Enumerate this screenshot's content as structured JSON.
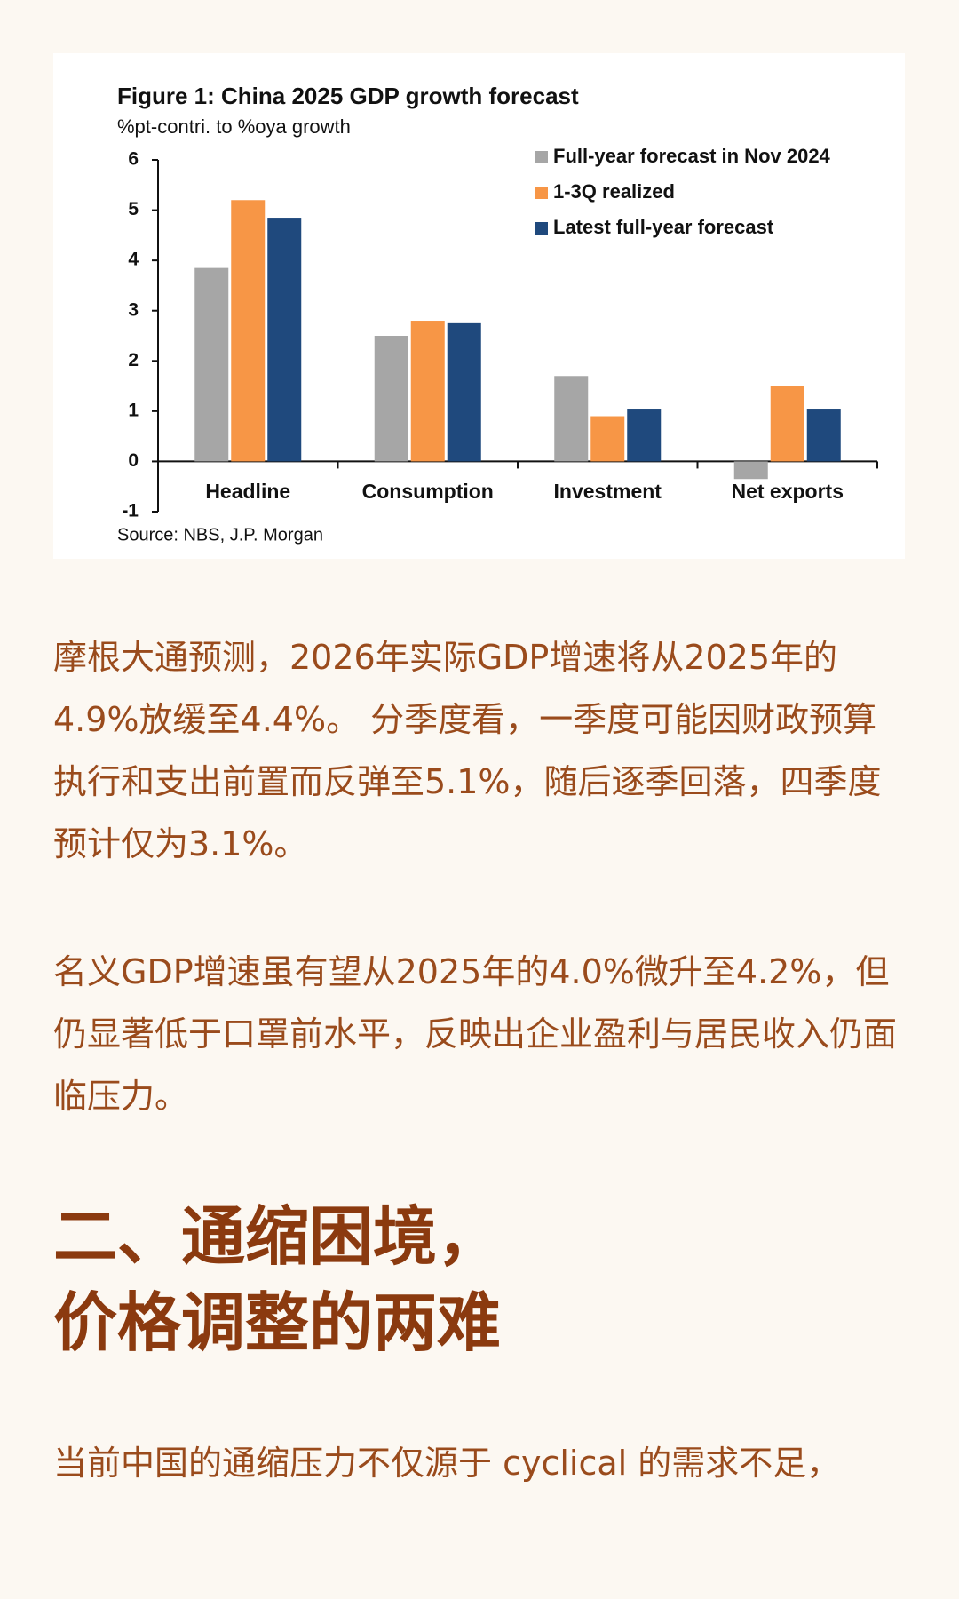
{
  "chart_data": {
    "type": "bar",
    "title": "Figure 1: China 2025 GDP growth forecast",
    "subtitle": "%pt-contri. to %oya growth",
    "source": "Source: NBS, J.P. Morgan",
    "categories": [
      "Headline",
      "Consumption",
      "Investment",
      "Net exports"
    ],
    "series": [
      {
        "name": "Full-year forecast in Nov 2024",
        "color": "#a6a6a6",
        "values": [
          3.85,
          2.5,
          1.7,
          -0.35
        ]
      },
      {
        "name": "1-3Q realized",
        "color": "#f79646",
        "values": [
          5.2,
          2.8,
          0.9,
          1.5
        ]
      },
      {
        "name": "Latest full-year forecast",
        "color": "#1f497d",
        "values": [
          4.85,
          2.75,
          1.05,
          1.05
        ]
      }
    ],
    "ylim": [
      -1,
      6
    ],
    "yticks": [
      -1,
      0,
      1,
      2,
      3,
      4,
      5,
      6
    ],
    "legend": "top-right"
  },
  "article": {
    "paragraphs": [
      "摩根大通预测，2026年实际GDP增速将从2025年的4.9%放缓至4.4%。 分季度看，一季度可能因财政预算执行和支出前置而反弹至5.1%，随后逐季回落，四季度预计仅为3.1%。",
      "名义GDP增速虽有望从2025年的4.0%微升至4.2%，但仍显著低于口罩前水平，反映出企业盈利与居民收入仍面临压力。"
    ],
    "heading": [
      "二、通缩困境，",
      "价格调整的两难"
    ],
    "closing": "当前中国的通缩压力不仅源于 cyclical 的需求不足，"
  }
}
